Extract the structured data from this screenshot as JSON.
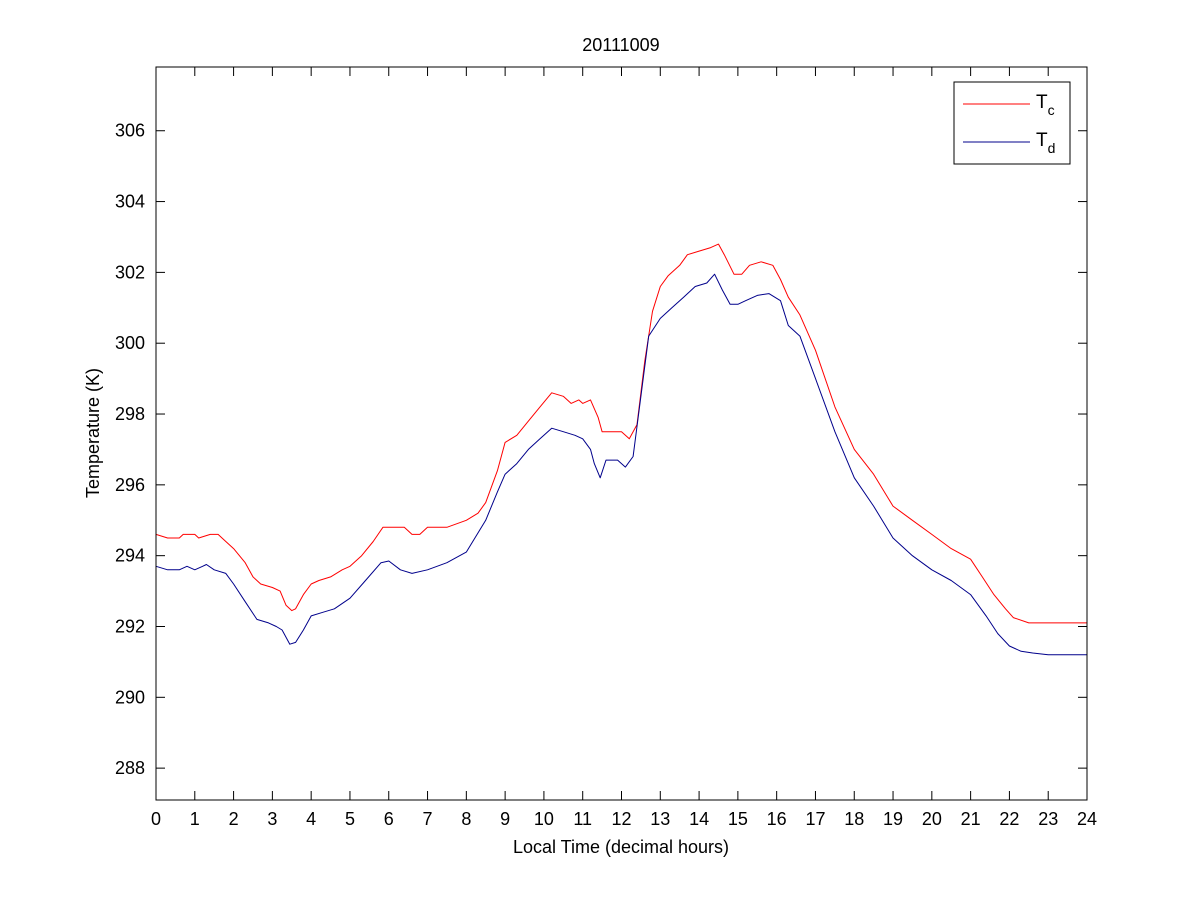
{
  "chart_data": {
    "type": "line",
    "title": "20111009",
    "xlabel": "Local Time (decimal hours)",
    "ylabel": "Temperature (K)",
    "xlim": [
      0,
      24
    ],
    "ylim": [
      287.1,
      307.8
    ],
    "x_ticks": [
      0,
      1,
      2,
      3,
      4,
      5,
      6,
      7,
      8,
      9,
      10,
      11,
      12,
      13,
      14,
      15,
      16,
      17,
      18,
      19,
      20,
      21,
      22,
      23,
      24
    ],
    "y_ticks": [
      288,
      290,
      292,
      294,
      296,
      298,
      300,
      302,
      304,
      306
    ],
    "grid": false,
    "legend_position": "top-right",
    "series": [
      {
        "name": "Tc",
        "label_main": "T",
        "label_sub": "c",
        "color": "#ff0000",
        "points": [
          [
            0.0,
            294.6
          ],
          [
            0.3,
            294.5
          ],
          [
            0.6,
            294.5
          ],
          [
            0.7,
            294.6
          ],
          [
            1.0,
            294.6
          ],
          [
            1.1,
            294.5
          ],
          [
            1.4,
            294.6
          ],
          [
            1.6,
            294.6
          ],
          [
            1.8,
            294.4
          ],
          [
            2.0,
            294.2
          ],
          [
            2.3,
            293.8
          ],
          [
            2.5,
            293.4
          ],
          [
            2.7,
            293.2
          ],
          [
            3.0,
            293.1
          ],
          [
            3.2,
            293.0
          ],
          [
            3.35,
            292.6
          ],
          [
            3.5,
            292.45
          ],
          [
            3.6,
            292.5
          ],
          [
            3.8,
            292.9
          ],
          [
            4.0,
            293.2
          ],
          [
            4.2,
            293.3
          ],
          [
            4.5,
            293.4
          ],
          [
            4.8,
            293.6
          ],
          [
            5.0,
            293.7
          ],
          [
            5.3,
            294.0
          ],
          [
            5.6,
            294.4
          ],
          [
            5.85,
            294.8
          ],
          [
            6.1,
            294.8
          ],
          [
            6.4,
            294.8
          ],
          [
            6.6,
            294.6
          ],
          [
            6.8,
            294.6
          ],
          [
            7.0,
            294.8
          ],
          [
            7.5,
            294.8
          ],
          [
            8.0,
            295.0
          ],
          [
            8.3,
            295.2
          ],
          [
            8.5,
            295.5
          ],
          [
            8.8,
            296.4
          ],
          [
            9.0,
            297.2
          ],
          [
            9.3,
            297.4
          ],
          [
            9.6,
            297.8
          ],
          [
            9.9,
            298.2
          ],
          [
            10.2,
            298.6
          ],
          [
            10.5,
            298.5
          ],
          [
            10.7,
            298.3
          ],
          [
            10.9,
            298.4
          ],
          [
            11.0,
            298.3
          ],
          [
            11.2,
            298.4
          ],
          [
            11.4,
            297.9
          ],
          [
            11.5,
            297.5
          ],
          [
            12.0,
            297.5
          ],
          [
            12.2,
            297.3
          ],
          [
            12.4,
            297.7
          ],
          [
            12.6,
            299.5
          ],
          [
            12.8,
            300.9
          ],
          [
            13.0,
            301.6
          ],
          [
            13.2,
            301.9
          ],
          [
            13.5,
            302.2
          ],
          [
            13.7,
            302.5
          ],
          [
            14.0,
            302.6
          ],
          [
            14.3,
            302.7
          ],
          [
            14.5,
            302.8
          ],
          [
            14.65,
            302.5
          ],
          [
            14.9,
            301.95
          ],
          [
            15.1,
            301.95
          ],
          [
            15.3,
            302.2
          ],
          [
            15.6,
            302.3
          ],
          [
            15.9,
            302.2
          ],
          [
            16.1,
            301.8
          ],
          [
            16.3,
            301.3
          ],
          [
            16.6,
            300.8
          ],
          [
            17.0,
            299.8
          ],
          [
            17.5,
            298.2
          ],
          [
            18.0,
            297.0
          ],
          [
            18.5,
            296.3
          ],
          [
            19.0,
            295.4
          ],
          [
            19.5,
            295.0
          ],
          [
            20.0,
            294.6
          ],
          [
            20.5,
            294.2
          ],
          [
            21.0,
            293.9
          ],
          [
            21.3,
            293.4
          ],
          [
            21.6,
            292.9
          ],
          [
            21.9,
            292.5
          ],
          [
            22.1,
            292.25
          ],
          [
            22.5,
            292.1
          ],
          [
            23.0,
            292.1
          ],
          [
            23.5,
            292.1
          ],
          [
            24.0,
            292.1
          ]
        ]
      },
      {
        "name": "Td",
        "label_main": "T",
        "label_sub": "d",
        "color": "#00008b",
        "points": [
          [
            0.0,
            293.7
          ],
          [
            0.3,
            293.6
          ],
          [
            0.6,
            293.6
          ],
          [
            0.8,
            293.7
          ],
          [
            1.0,
            293.6
          ],
          [
            1.2,
            293.7
          ],
          [
            1.3,
            293.75
          ],
          [
            1.5,
            293.6
          ],
          [
            1.8,
            293.5
          ],
          [
            2.0,
            293.2
          ],
          [
            2.3,
            292.7
          ],
          [
            2.6,
            292.2
          ],
          [
            2.9,
            292.1
          ],
          [
            3.1,
            292.0
          ],
          [
            3.25,
            291.9
          ],
          [
            3.45,
            291.5
          ],
          [
            3.6,
            291.55
          ],
          [
            3.8,
            291.9
          ],
          [
            4.0,
            292.3
          ],
          [
            4.3,
            292.4
          ],
          [
            4.6,
            292.5
          ],
          [
            5.0,
            292.8
          ],
          [
            5.4,
            293.3
          ],
          [
            5.8,
            293.8
          ],
          [
            6.0,
            293.85
          ],
          [
            6.3,
            293.6
          ],
          [
            6.6,
            293.5
          ],
          [
            7.0,
            293.6
          ],
          [
            7.5,
            293.8
          ],
          [
            8.0,
            294.1
          ],
          [
            8.5,
            295.0
          ],
          [
            8.8,
            295.8
          ],
          [
            9.0,
            296.3
          ],
          [
            9.3,
            296.6
          ],
          [
            9.6,
            297.0
          ],
          [
            9.9,
            297.3
          ],
          [
            10.2,
            297.6
          ],
          [
            10.5,
            297.5
          ],
          [
            10.8,
            297.4
          ],
          [
            11.0,
            297.3
          ],
          [
            11.2,
            297.0
          ],
          [
            11.3,
            296.6
          ],
          [
            11.45,
            296.2
          ],
          [
            11.6,
            296.7
          ],
          [
            11.9,
            296.7
          ],
          [
            12.1,
            296.5
          ],
          [
            12.3,
            296.8
          ],
          [
            12.5,
            298.5
          ],
          [
            12.7,
            300.2
          ],
          [
            13.0,
            300.7
          ],
          [
            13.3,
            301.0
          ],
          [
            13.6,
            301.3
          ],
          [
            13.9,
            301.6
          ],
          [
            14.2,
            301.7
          ],
          [
            14.4,
            301.95
          ],
          [
            14.6,
            301.5
          ],
          [
            14.8,
            301.1
          ],
          [
            15.0,
            301.1
          ],
          [
            15.2,
            301.2
          ],
          [
            15.5,
            301.35
          ],
          [
            15.8,
            301.4
          ],
          [
            16.1,
            301.2
          ],
          [
            16.3,
            300.5
          ],
          [
            16.6,
            300.2
          ],
          [
            17.0,
            299.0
          ],
          [
            17.5,
            297.5
          ],
          [
            18.0,
            296.2
          ],
          [
            18.5,
            295.4
          ],
          [
            19.0,
            294.5
          ],
          [
            19.5,
            294.0
          ],
          [
            20.0,
            293.6
          ],
          [
            20.5,
            293.3
          ],
          [
            21.0,
            292.9
          ],
          [
            21.4,
            292.3
          ],
          [
            21.7,
            291.8
          ],
          [
            22.0,
            291.45
          ],
          [
            22.3,
            291.3
          ],
          [
            22.6,
            291.25
          ],
          [
            23.0,
            291.2
          ],
          [
            23.5,
            291.2
          ],
          [
            24.0,
            291.2
          ]
        ]
      }
    ]
  }
}
